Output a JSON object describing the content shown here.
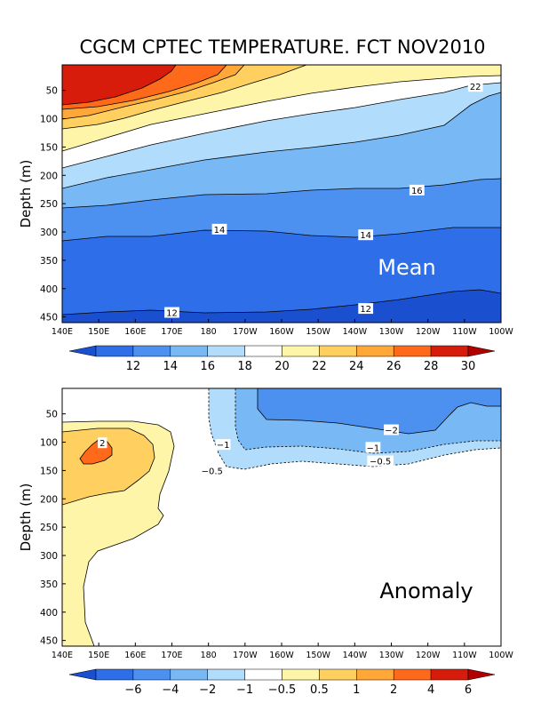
{
  "title": "CGCM CPTEC TEMPERATURE. FCT NOV2010",
  "chart_data": [
    {
      "type": "contour",
      "panel": "Mean",
      "xlabel": "",
      "ylabel": "Depth (m)",
      "x_ticks": [
        "140E",
        "150E",
        "160E",
        "170E",
        "180",
        "170W",
        "160W",
        "150W",
        "140W",
        "130W",
        "120W",
        "110W",
        "100W"
      ],
      "y_ticks": [
        50,
        100,
        150,
        200,
        250,
        300,
        350,
        400,
        450
      ],
      "y_range": [
        5,
        460
      ],
      "colorbar": {
        "levels": [
          "12",
          "14",
          "16",
          "18",
          "20",
          "22",
          "24",
          "26",
          "28",
          "30"
        ],
        "colors": [
          "#1a50d0",
          "#2e6ee8",
          "#4c90f0",
          "#78b8f5",
          "#b2dcfb",
          "#ffffff",
          "#fff5a8",
          "#ffd060",
          "#ffa838",
          "#ff6a1a",
          "#d81c0c",
          "#b00000"
        ]
      },
      "contour_labels": [
        {
          "text": "22",
          "lon": 253,
          "depth": 43
        },
        {
          "text": "16",
          "lon": 237,
          "depth": 226
        },
        {
          "text": "14",
          "lon": 183,
          "depth": 295
        },
        {
          "text": "14",
          "lon": 223,
          "depth": 305
        },
        {
          "text": "12",
          "lon": 170,
          "depth": 442
        },
        {
          "text": "12",
          "lon": 223,
          "depth": 435
        }
      ]
    },
    {
      "type": "contour",
      "panel": "Anomaly",
      "xlabel": "",
      "ylabel": "Depth (m)",
      "x_ticks": [
        "140E",
        "150E",
        "160E",
        "170E",
        "180",
        "170W",
        "160W",
        "150W",
        "140W",
        "130W",
        "120W",
        "110W",
        "100W"
      ],
      "y_ticks": [
        50,
        100,
        150,
        200,
        250,
        300,
        350,
        400,
        450
      ],
      "y_range": [
        5,
        460
      ],
      "colorbar": {
        "levels": [
          "−6",
          "−4",
          "−2",
          "−1",
          "−0.5",
          "0.5",
          "1",
          "2",
          "4",
          "6"
        ],
        "colors": [
          "#1a50d0",
          "#2e6ee8",
          "#4c90f0",
          "#78b8f5",
          "#b2dcfb",
          "#ffffff",
          "#fff5a8",
          "#ffd060",
          "#ffa838",
          "#ff6a1a",
          "#d81c0c",
          "#b00000"
        ]
      },
      "contour_labels": [
        {
          "text": "2",
          "lon": 151,
          "depth": 101
        },
        {
          "text": "−2",
          "lon": 230,
          "depth": 78
        },
        {
          "text": "−1",
          "lon": 184,
          "depth": 104
        },
        {
          "text": "−1",
          "lon": 225,
          "depth": 109
        },
        {
          "text": "−0.5",
          "lon": 181,
          "depth": 150
        },
        {
          "text": "−0.5",
          "lon": 227,
          "depth": 133
        }
      ]
    }
  ],
  "labels": {
    "mean": "Mean",
    "anomaly": "Anomaly"
  }
}
